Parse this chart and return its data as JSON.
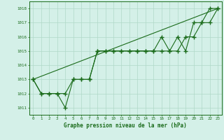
{
  "hours": [
    0,
    1,
    2,
    3,
    4,
    5,
    6,
    7,
    8,
    9,
    10,
    11,
    12,
    13,
    14,
    15,
    16,
    17,
    18,
    19,
    20,
    21,
    22,
    23
  ],
  "pressure_main": [
    1013,
    1012,
    1012,
    1012,
    1011,
    1013,
    1013,
    1013,
    1015,
    1015,
    1015,
    1015,
    1015,
    1015,
    1015,
    1015,
    1016,
    1015,
    1016,
    1015,
    1017,
    1017,
    1018,
    1018
  ],
  "pressure2": [
    1013,
    1012,
    1012,
    1012,
    1012,
    1013,
    1013,
    1013,
    1015,
    1015,
    1015,
    1015,
    1015,
    1015,
    1015,
    1015,
    1015,
    1015,
    1015,
    1016,
    1016,
    1017,
    1017,
    1018
  ],
  "straight_line_x": [
    0,
    23
  ],
  "straight_line_y": [
    1013,
    1018
  ],
  "ylim": [
    1010.5,
    1018.5
  ],
  "xlim": [
    -0.5,
    23.5
  ],
  "yticks": [
    1011,
    1012,
    1013,
    1014,
    1015,
    1016,
    1017,
    1018
  ],
  "xticks": [
    0,
    1,
    2,
    3,
    4,
    5,
    6,
    7,
    8,
    9,
    10,
    11,
    12,
    13,
    14,
    15,
    16,
    17,
    18,
    19,
    20,
    21,
    22,
    23
  ],
  "line_color": "#1a6b1a",
  "bg_color": "#d4f0e8",
  "grid_color": "#b0d8c8",
  "xlabel": "Graphe pression niveau de la mer (hPa)",
  "marker": "+",
  "markersize": 4.0,
  "linewidth": 0.8
}
